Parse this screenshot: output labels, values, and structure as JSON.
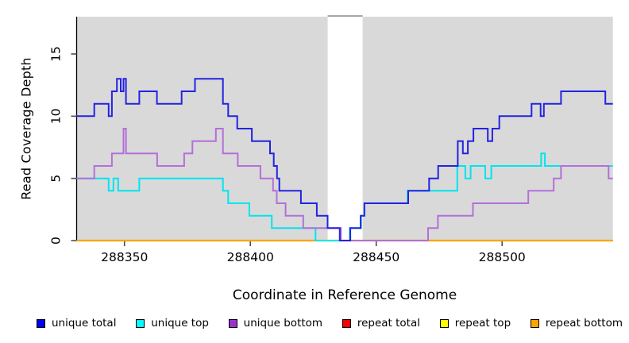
{
  "figure": {
    "x_axis_title": "Coordinate in Reference Genome",
    "y_axis_title": "Read Coverage Depth"
  },
  "legend": {
    "items": [
      {
        "label": "unique total",
        "color": "#0000ee"
      },
      {
        "label": "unique top",
        "color": "#00ffff"
      },
      {
        "label": "unique bottom",
        "color": "#9932cc"
      },
      {
        "label": "repeat total",
        "color": "#ff0000"
      },
      {
        "label": "repeat top",
        "color": "#ffff00"
      },
      {
        "label": "repeat bottom",
        "color": "#ffa500"
      }
    ]
  },
  "chart_data": {
    "type": "line",
    "subtype": "step",
    "title": "",
    "xlabel": "Coordinate in Reference Genome",
    "ylabel": "Read Coverage Depth",
    "xlim": [
      288331,
      288544
    ],
    "ylim": [
      0,
      18
    ],
    "grid": "off",
    "legend_position": "bottom",
    "panel_bg": "#d9d9d9",
    "axis_color": "#000000",
    "tick_color": "#4d4d4d",
    "x_ticks": [
      {
        "value": 288350,
        "label": "288350"
      },
      {
        "value": 288400,
        "label": "288400"
      },
      {
        "value": 288450,
        "label": "288450"
      },
      {
        "value": 288500,
        "label": "288500"
      }
    ],
    "y_ticks": [
      {
        "value": 0,
        "label": "0"
      },
      {
        "value": 5,
        "label": "5"
      },
      {
        "value": 10,
        "label": "10"
      },
      {
        "value": 15,
        "label": "15"
      }
    ],
    "gap_band": {
      "from": 288430.7,
      "to": 288444.6,
      "fill": "#ffffff",
      "cap_color": "#999999"
    },
    "series": [
      {
        "name": "repeat total",
        "color": "#ee0000",
        "width": 2,
        "points": [
          [
            288331,
            0
          ]
        ]
      },
      {
        "name": "repeat top",
        "color": "#ffff00",
        "width": 2,
        "points": [
          [
            288331,
            0
          ]
        ]
      },
      {
        "name": "repeat bottom",
        "color": "#ffa500",
        "width": 2.2,
        "points": [
          [
            288331,
            0
          ]
        ]
      },
      {
        "name": "unique top",
        "color": "#00e5ee",
        "width": 2,
        "points": [
          [
            288331,
            5
          ],
          [
            288343.7,
            4
          ],
          [
            288345.6,
            5
          ],
          [
            288347.5,
            4
          ],
          [
            288355.9,
            5
          ],
          [
            288389.1,
            4
          ],
          [
            288391.2,
            3
          ],
          [
            288399.6,
            2
          ],
          [
            288408.5,
            1
          ],
          [
            288425.9,
            0
          ],
          [
            288439.5,
            1
          ],
          [
            288444,
            2
          ],
          [
            288445.3,
            3
          ],
          [
            288462.5,
            4
          ],
          [
            288482.2,
            6
          ],
          [
            288485.4,
            5
          ],
          [
            288487.5,
            6
          ],
          [
            288493.3,
            5
          ],
          [
            288495.7,
            6
          ],
          [
            288515.5,
            7
          ],
          [
            288517,
            6
          ]
        ]
      },
      {
        "name": "unique bottom",
        "color": "#b36fd9",
        "width": 2,
        "points": [
          [
            288331,
            5
          ],
          [
            288338,
            6
          ],
          [
            288345,
            7
          ],
          [
            288349.6,
            9
          ],
          [
            288350.6,
            7
          ],
          [
            288363,
            6
          ],
          [
            288373.7,
            7
          ],
          [
            288377,
            8
          ],
          [
            288386.3,
            9
          ],
          [
            288389.1,
            7
          ],
          [
            288395,
            6
          ],
          [
            288404,
            5
          ],
          [
            288409,
            4
          ],
          [
            288410.5,
            3
          ],
          [
            288414,
            2
          ],
          [
            288421,
            1
          ],
          [
            288436,
            0
          ],
          [
            288470.6,
            1
          ],
          [
            288474.5,
            2
          ],
          [
            288488.4,
            3
          ],
          [
            288510.4,
            4
          ],
          [
            288520.5,
            5
          ],
          [
            288523.4,
            6
          ],
          [
            288542.3,
            5
          ]
        ]
      },
      {
        "name": "unique total",
        "color": "#2323e2",
        "width": 2,
        "points": [
          [
            288331,
            10
          ],
          [
            288338,
            11
          ],
          [
            288343.7,
            10
          ],
          [
            288345,
            12
          ],
          [
            288347,
            13
          ],
          [
            288348.5,
            12
          ],
          [
            288349.6,
            13
          ],
          [
            288350.6,
            11
          ],
          [
            288355.9,
            12
          ],
          [
            288362.9,
            11
          ],
          [
            288372.7,
            12
          ],
          [
            288378,
            13
          ],
          [
            288389.1,
            11
          ],
          [
            288391.2,
            10
          ],
          [
            288394.8,
            9
          ],
          [
            288400.6,
            8
          ],
          [
            288407.8,
            7
          ],
          [
            288409.3,
            6
          ],
          [
            288410.6,
            5
          ],
          [
            288411.5,
            4
          ],
          [
            288420.1,
            3
          ],
          [
            288426.4,
            2
          ],
          [
            288430.7,
            1
          ],
          [
            288435.5,
            0
          ],
          [
            288439.7,
            1
          ],
          [
            288443.8,
            2
          ],
          [
            288445.3,
            3
          ],
          [
            288462.7,
            4
          ],
          [
            288471,
            5
          ],
          [
            288474.6,
            6
          ],
          [
            288482.4,
            8
          ],
          [
            288484.4,
            7
          ],
          [
            288486.4,
            8
          ],
          [
            288488.6,
            9
          ],
          [
            288494.3,
            8
          ],
          [
            288496.1,
            9
          ],
          [
            288498.9,
            10
          ],
          [
            288511.7,
            11
          ],
          [
            288515.3,
            10
          ],
          [
            288516.6,
            11
          ],
          [
            288523.4,
            12
          ],
          [
            288541,
            11
          ]
        ]
      }
    ]
  }
}
